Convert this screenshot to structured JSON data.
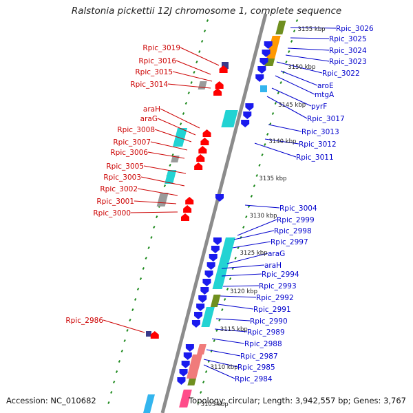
{
  "title": "Ralstonia pickettii 12J chromosome 1, complete sequence",
  "footer": {
    "accession": "Accession: NC_010682",
    "summary": "Topology: circular; Length: 3,942,557 bp; Genes: 3,767"
  },
  "colors": {
    "backbone": "#8c8c8c",
    "tick_major": "#1e8a1e",
    "forward_label": "#cc0000",
    "reverse_label": "#0000cc",
    "forward_gene": "#ff0000",
    "reverse_gene": "#1a1aee",
    "cds_cyan": "#22d3d3",
    "cds_orange": "#ff9900",
    "cds_olive": "#6f8f1f",
    "cds_pink": "#ff4d8a",
    "cds_salmon": "#f07b7b",
    "cds_gray": "#9a9a9a",
    "cds_purple": "#3a3a8a",
    "cds_lightblue": "#33b5ee"
  },
  "kbp_labels": [
    "3155 kbp",
    "3150 kbp",
    "3145 kbp",
    "3140 kbp",
    "3135 kbp",
    "3130 kbp",
    "3125 kbp",
    "3120 kbp",
    "3115 kbp",
    "3110 kbp",
    "3105 kbp"
  ],
  "forward_genes": [
    "Rpic_3019",
    "Rpic_3016",
    "Rpic_3015",
    "Rpic_3014",
    "araH",
    "araG",
    "Rpic_3008",
    "Rpic_3007",
    "Rpic_3006",
    "Rpic_3005",
    "Rpic_3003",
    "Rpic_3002",
    "Rpic_3001",
    "Rpic_3000",
    "Rpic_2986"
  ],
  "reverse_genes": [
    "Rpic_3026",
    "Rpic_3025",
    "Rpic_3024",
    "Rpic_3023",
    "Rpic_3022",
    "aroE",
    "mtgA",
    "pyrF",
    "Rpic_3017",
    "Rpic_3013",
    "Rpic_3012",
    "Rpic_3011",
    "Rpic_3004",
    "Rpic_2999",
    "Rpic_2998",
    "Rpic_2997",
    "araG",
    "araH",
    "Rpic_2994",
    "Rpic_2993",
    "Rpic_2992",
    "Rpic_2991",
    "Rpic_2990",
    "Rpic_2989",
    "Rpic_2988",
    "Rpic_2987",
    "Rpic_2985",
    "Rpic_2984"
  ]
}
